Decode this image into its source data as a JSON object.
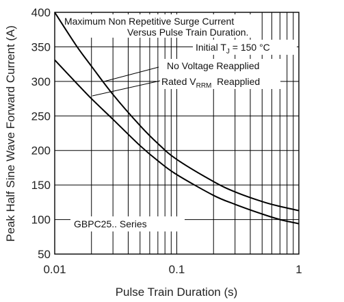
{
  "chart_data": {
    "type": "line",
    "xscale": "log",
    "xlim": [
      0.01,
      1
    ],
    "ylim": [
      50,
      400
    ],
    "xlabel": "Pulse Train Duration (s)",
    "ylabel": "Peak Half Sine Wave Forward Current (A)",
    "grid": true,
    "x_ticks": [
      0.01,
      0.1,
      1
    ],
    "x_tick_labels": [
      "0.01",
      "0.1",
      "1"
    ],
    "y_ticks": [
      50,
      100,
      150,
      200,
      250,
      300,
      350,
      400
    ],
    "y_tick_labels": [
      "50",
      "100",
      "150",
      "200",
      "250",
      "300",
      "350",
      "400"
    ],
    "annotations": {
      "title_line1": "Maximum Non Repetitive Surge Current",
      "title_line2": "Versus Pulse Train Duration.",
      "initial_tj_prefix": "Initial T",
      "initial_tj_sub": "J",
      "initial_tj_value": " = 150 °C",
      "series_note": "GBPC25.. Series"
    },
    "series": [
      {
        "name": "No Voltage Reapplied",
        "x": [
          0.01,
          0.015,
          0.02,
          0.03,
          0.05,
          0.07,
          0.1,
          0.2,
          0.3,
          0.5,
          0.7,
          1
        ],
        "y": [
          400,
          352,
          322,
          281,
          236,
          210,
          187,
          155,
          140,
          126,
          119,
          113
        ]
      },
      {
        "name_prefix": "Rated V",
        "name_sub": "RRM",
        "name_suffix": "  Reapplied",
        "x": [
          0.01,
          0.015,
          0.02,
          0.03,
          0.05,
          0.07,
          0.1,
          0.2,
          0.3,
          0.5,
          0.7,
          1
        ],
        "y": [
          331,
          298,
          275,
          245,
          207,
          185,
          165,
          135,
          122,
          108,
          100,
          94
        ]
      }
    ]
  }
}
